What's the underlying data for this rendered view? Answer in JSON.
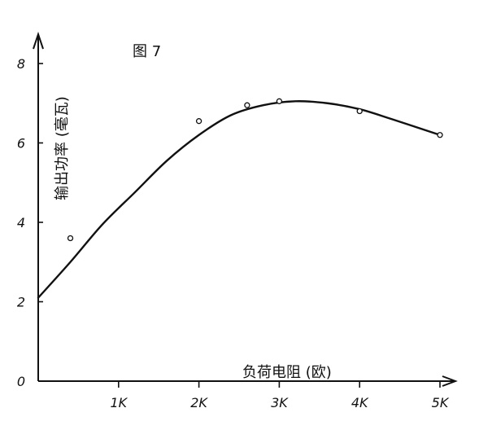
{
  "chart_data": {
    "type": "line",
    "title": "图 7",
    "xlabel": "负荷电阻 (欧)",
    "ylabel": "输出功率 (毫瓦)",
    "xlim": [
      0,
      5000
    ],
    "ylim": [
      0,
      8
    ],
    "x_ticks": [
      {
        "value": 1000,
        "label": "1K"
      },
      {
        "value": 2000,
        "label": "2K"
      },
      {
        "value": 3000,
        "label": "3K"
      },
      {
        "value": 4000,
        "label": "4K"
      },
      {
        "value": 5000,
        "label": "5K"
      }
    ],
    "y_ticks": [
      {
        "value": 0,
        "label": "0"
      },
      {
        "value": 2,
        "label": "2"
      },
      {
        "value": 4,
        "label": "4"
      },
      {
        "value": 6,
        "label": "6"
      },
      {
        "value": 8,
        "label": "8"
      }
    ],
    "curve": [
      {
        "x": 0,
        "y": 2.1
      },
      {
        "x": 400,
        "y": 3.0
      },
      {
        "x": 800,
        "y": 3.95
      },
      {
        "x": 1200,
        "y": 4.75
      },
      {
        "x": 1600,
        "y": 5.55
      },
      {
        "x": 2000,
        "y": 6.2
      },
      {
        "x": 2400,
        "y": 6.7
      },
      {
        "x": 2800,
        "y": 6.95
      },
      {
        "x": 3200,
        "y": 7.05
      },
      {
        "x": 3600,
        "y": 7.0
      },
      {
        "x": 4000,
        "y": 6.85
      },
      {
        "x": 4400,
        "y": 6.6
      },
      {
        "x": 5000,
        "y": 6.2
      }
    ],
    "markers": [
      {
        "x": 400,
        "y": 3.6
      },
      {
        "x": 2000,
        "y": 6.55
      },
      {
        "x": 2600,
        "y": 6.95
      },
      {
        "x": 3000,
        "y": 7.05
      },
      {
        "x": 4000,
        "y": 6.8
      },
      {
        "x": 5000,
        "y": 6.2
      }
    ],
    "grid": false,
    "legend": "none",
    "colors": {
      "line": "#111111",
      "background": "#ffffff"
    }
  }
}
